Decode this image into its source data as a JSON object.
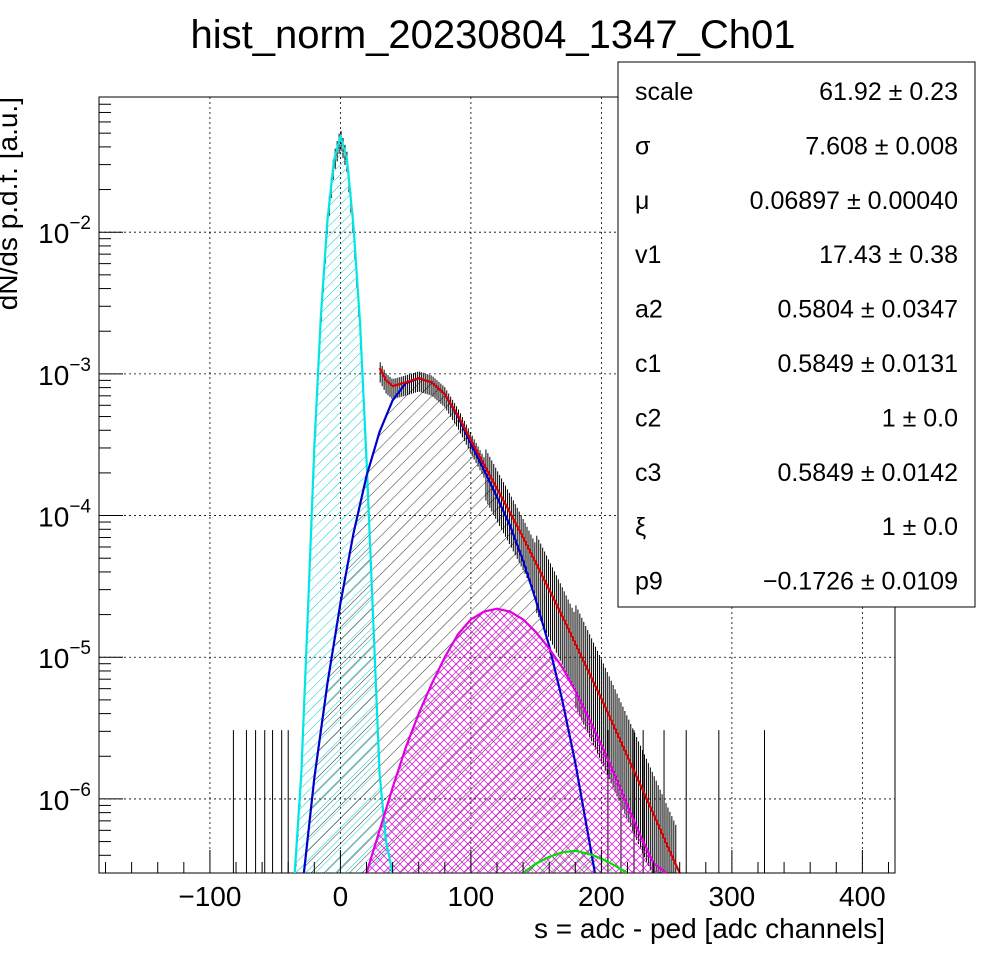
{
  "chart_data": {
    "type": "line",
    "title": "hist_norm_20230804_1347_Ch01",
    "xlabel": "s = adc - ped [adc channels]",
    "ylabel": "dN/ds p.d.f. [a.u.]",
    "xlim": [
      -185,
      425
    ],
    "ylim": [
      3e-07,
      0.09
    ],
    "yscale": "log",
    "grid": true,
    "x_ticks": [
      {
        "value": -100,
        "label": "−100"
      },
      {
        "value": 0,
        "label": "0"
      },
      {
        "value": 100,
        "label": "100"
      },
      {
        "value": 200,
        "label": "200"
      },
      {
        "value": 300,
        "label": "300"
      },
      {
        "value": 400,
        "label": "400"
      }
    ],
    "y_ticks": [
      {
        "value": 1e-06,
        "mantissa": "10",
        "exp": "−6"
      },
      {
        "value": 1e-05,
        "mantissa": "10",
        "exp": "−5"
      },
      {
        "value": 0.0001,
        "mantissa": "10",
        "exp": "−4"
      },
      {
        "value": 0.001,
        "mantissa": "10",
        "exp": "−3"
      },
      {
        "value": 0.01,
        "mantissa": "10",
        "exp": "−2"
      }
    ],
    "series": [
      {
        "color": "#00e5e5",
        "hatch": "cyan",
        "x": [
          -35,
          -30,
          -25,
          -20,
          -15,
          -10,
          -5,
          0,
          5,
          10,
          15,
          20,
          25,
          30,
          35,
          40
        ],
        "values": [
          3e-07,
          1.5e-06,
          2e-05,
          0.0003,
          0.0025,
          0.012,
          0.032,
          0.048,
          0.033,
          0.011,
          0.0023,
          0.00025,
          2e-05,
          1.5e-06,
          5e-07,
          3e-07
        ]
      },
      {
        "color": "#0000cc",
        "hatch": "black",
        "x": [
          -28,
          -20,
          -10,
          0,
          10,
          20,
          30,
          40,
          50,
          60,
          70,
          80,
          90,
          100,
          110,
          120,
          130,
          140,
          150,
          160,
          170,
          180,
          190,
          195
        ],
        "values": [
          3e-07,
          1.4e-06,
          6.5e-06,
          2.4e-05,
          7.5e-05,
          0.00019,
          0.00039,
          0.00065,
          0.00086,
          0.00093,
          0.00087,
          0.00072,
          0.0005,
          0.00032,
          0.00021,
          0.000135,
          8.5e-05,
          4.8e-05,
          2.5e-05,
          1.2e-05,
          5e-06,
          1.8e-06,
          5.5e-07,
          3e-07
        ]
      },
      {
        "color": "#e000e0",
        "hatch": "magenta",
        "x": [
          20,
          30,
          40,
          50,
          60,
          70,
          80,
          90,
          100,
          110,
          120,
          130,
          140,
          150,
          160,
          170,
          180,
          190,
          200,
          210,
          220,
          230,
          240,
          250
        ],
        "values": [
          3e-07,
          6e-07,
          1.2e-06,
          2.3e-06,
          4e-06,
          6.5e-06,
          1e-05,
          1.45e-05,
          1.85e-05,
          2.1e-05,
          2.2e-05,
          2.1e-05,
          1.85e-05,
          1.5e-05,
          1.15e-05,
          8.5e-06,
          5.8e-06,
          3.8e-06,
          2.4e-06,
          1.5e-06,
          9e-07,
          5.5e-07,
          3.5e-07,
          3e-07
        ]
      },
      {
        "color": "#00dd00",
        "hatch": "green",
        "x": [
          140,
          150,
          160,
          170,
          180,
          190,
          200,
          210,
          220
        ],
        "values": [
          3e-07,
          3.5e-07,
          3.9e-07,
          4.2e-07,
          4.3e-07,
          4.1e-07,
          3.8e-07,
          3.4e-07,
          3e-07
        ]
      },
      {
        "color": "#dd0000",
        "x": [
          30,
          35,
          40,
          50,
          60,
          70,
          80,
          90,
          100,
          110,
          120,
          130,
          140,
          150,
          160,
          170,
          180,
          190,
          200,
          210,
          220,
          230,
          240,
          250,
          260
        ],
        "values": [
          0.0011,
          0.0009,
          0.00082,
          0.00087,
          0.00093,
          0.00087,
          0.00072,
          0.00051,
          0.00034,
          0.00023,
          0.000155,
          0.000105,
          7e-05,
          4.6e-05,
          3e-05,
          1.95e-05,
          1.25e-05,
          8e-06,
          5.1e-06,
          3.2e-06,
          2e-06,
          1.25e-06,
          7.8e-07,
          4.8e-07,
          3e-07
        ]
      }
    ]
  },
  "stats_box": {
    "rows": [
      {
        "name": "scale",
        "value": "61.92 ± 0.23"
      },
      {
        "name": "σ",
        "value": "7.608 ± 0.008"
      },
      {
        "name": "μ",
        "value": "0.06897 ± 0.00040"
      },
      {
        "name": "v1",
        "value": "17.43 ± 0.38"
      },
      {
        "name": "a2",
        "value": "0.5804 ± 0.0347"
      },
      {
        "name": "c1",
        "value": "0.5849 ± 0.0131"
      },
      {
        "name": "c2",
        "value": "1 ± 0.0"
      },
      {
        "name": "c3",
        "value": "0.5849 ± 0.0142"
      },
      {
        "name": "ξ",
        "value": "1 ± 0.0"
      },
      {
        "name": "p9",
        "value": "−0.1726 ± 0.0109"
      }
    ]
  }
}
